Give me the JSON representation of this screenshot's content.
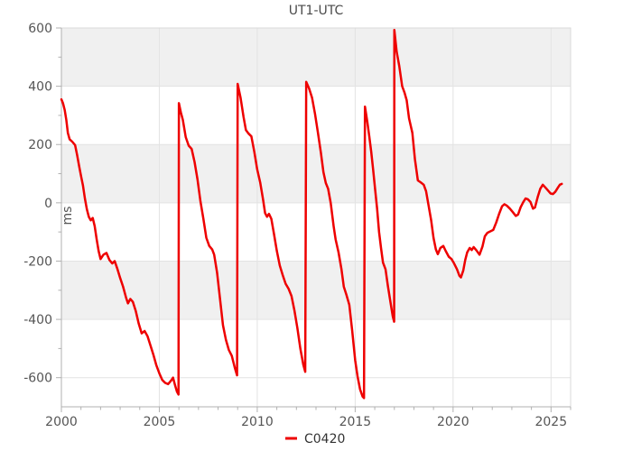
{
  "chart": {
    "title": "UT1-UTC",
    "y_axis_label": "ms",
    "legend": {
      "label": "C0420",
      "color": "#ee0000"
    }
  },
  "chart_data": {
    "type": "line",
    "title": "UT1-UTC",
    "xlabel": "",
    "ylabel": "ms",
    "xlim": [
      2000,
      2026
    ],
    "ylim": [
      -700,
      600
    ],
    "x_major_ticks": [
      2000,
      2005,
      2010,
      2015,
      2020,
      2025
    ],
    "x_minor_step": 1,
    "y_major_ticks": [
      600,
      400,
      200,
      0,
      -200,
      -400,
      -600
    ],
    "y_minor_step": 100,
    "grid": true,
    "shaded_bands": [
      [
        600,
        400
      ],
      [
        200,
        0
      ],
      [
        -200,
        -400
      ]
    ],
    "band_color": "#f0f0f0",
    "grid_color": "#e3e3e3",
    "axis_color": "#b0b0b0",
    "border_color": "#dadada",
    "text_color": "#555555",
    "legend_position": "bottom-center",
    "series": [
      {
        "name": "C0420",
        "color": "#ee0000",
        "width": 2.5,
        "points": [
          [
            2000.0,
            355
          ],
          [
            2000.08,
            342
          ],
          [
            2000.17,
            318
          ],
          [
            2000.25,
            285
          ],
          [
            2000.33,
            240
          ],
          [
            2000.42,
            218
          ],
          [
            2000.55,
            210
          ],
          [
            2000.7,
            198
          ],
          [
            2000.8,
            165
          ],
          [
            2000.9,
            128
          ],
          [
            2001.0,
            93
          ],
          [
            2001.1,
            60
          ],
          [
            2001.2,
            15
          ],
          [
            2001.3,
            -22
          ],
          [
            2001.4,
            -48
          ],
          [
            2001.5,
            -60
          ],
          [
            2001.6,
            -52
          ],
          [
            2001.7,
            -80
          ],
          [
            2001.8,
            -125
          ],
          [
            2001.9,
            -165
          ],
          [
            2002.0,
            -193
          ],
          [
            2002.15,
            -178
          ],
          [
            2002.3,
            -172
          ],
          [
            2002.45,
            -196
          ],
          [
            2002.6,
            -208
          ],
          [
            2002.72,
            -200
          ],
          [
            2002.85,
            -225
          ],
          [
            2003.0,
            -258
          ],
          [
            2003.15,
            -288
          ],
          [
            2003.3,
            -325
          ],
          [
            2003.4,
            -345
          ],
          [
            2003.52,
            -330
          ],
          [
            2003.65,
            -340
          ],
          [
            2003.8,
            -372
          ],
          [
            2003.95,
            -415
          ],
          [
            2004.1,
            -448
          ],
          [
            2004.25,
            -440
          ],
          [
            2004.4,
            -458
          ],
          [
            2004.55,
            -490
          ],
          [
            2004.7,
            -522
          ],
          [
            2004.85,
            -558
          ],
          [
            2005.0,
            -585
          ],
          [
            2005.15,
            -608
          ],
          [
            2005.3,
            -618
          ],
          [
            2005.45,
            -622
          ],
          [
            2005.6,
            -610
          ],
          [
            2005.7,
            -600
          ],
          [
            2005.8,
            -625
          ],
          [
            2005.9,
            -648
          ],
          [
            2005.98,
            -658
          ],
          [
            2006.0,
            342
          ],
          [
            2006.1,
            310
          ],
          [
            2006.2,
            285
          ],
          [
            2006.35,
            225
          ],
          [
            2006.5,
            196
          ],
          [
            2006.65,
            185
          ],
          [
            2006.8,
            140
          ],
          [
            2006.95,
            80
          ],
          [
            2007.1,
            5
          ],
          [
            2007.25,
            -55
          ],
          [
            2007.4,
            -120
          ],
          [
            2007.55,
            -148
          ],
          [
            2007.7,
            -160
          ],
          [
            2007.8,
            -178
          ],
          [
            2007.95,
            -240
          ],
          [
            2008.1,
            -330
          ],
          [
            2008.25,
            -420
          ],
          [
            2008.4,
            -470
          ],
          [
            2008.55,
            -505
          ],
          [
            2008.7,
            -525
          ],
          [
            2008.85,
            -565
          ],
          [
            2008.97,
            -592
          ],
          [
            2009.0,
            408
          ],
          [
            2009.15,
            360
          ],
          [
            2009.3,
            295
          ],
          [
            2009.42,
            250
          ],
          [
            2009.55,
            238
          ],
          [
            2009.7,
            228
          ],
          [
            2009.85,
            175
          ],
          [
            2010.0,
            114
          ],
          [
            2010.15,
            70
          ],
          [
            2010.3,
            10
          ],
          [
            2010.4,
            -35
          ],
          [
            2010.5,
            -48
          ],
          [
            2010.6,
            -38
          ],
          [
            2010.72,
            -55
          ],
          [
            2010.85,
            -105
          ],
          [
            2011.0,
            -165
          ],
          [
            2011.15,
            -215
          ],
          [
            2011.3,
            -248
          ],
          [
            2011.45,
            -278
          ],
          [
            2011.6,
            -295
          ],
          [
            2011.75,
            -320
          ],
          [
            2011.9,
            -370
          ],
          [
            2012.05,
            -430
          ],
          [
            2012.2,
            -500
          ],
          [
            2012.35,
            -555
          ],
          [
            2012.45,
            -580
          ],
          [
            2012.5,
            415
          ],
          [
            2012.65,
            392
          ],
          [
            2012.8,
            360
          ],
          [
            2012.95,
            305
          ],
          [
            2013.1,
            240
          ],
          [
            2013.25,
            172
          ],
          [
            2013.38,
            105
          ],
          [
            2013.5,
            68
          ],
          [
            2013.62,
            48
          ],
          [
            2013.75,
            0
          ],
          [
            2013.9,
            -80
          ],
          [
            2014.0,
            -125
          ],
          [
            2014.15,
            -170
          ],
          [
            2014.3,
            -228
          ],
          [
            2014.42,
            -288
          ],
          [
            2014.55,
            -315
          ],
          [
            2014.7,
            -350
          ],
          [
            2014.85,
            -440
          ],
          [
            2015.0,
            -540
          ],
          [
            2015.12,
            -595
          ],
          [
            2015.25,
            -640
          ],
          [
            2015.38,
            -665
          ],
          [
            2015.45,
            -670
          ],
          [
            2015.5,
            330
          ],
          [
            2015.62,
            278
          ],
          [
            2015.72,
            228
          ],
          [
            2015.82,
            175
          ],
          [
            2015.92,
            112
          ],
          [
            2016.02,
            45
          ],
          [
            2016.12,
            -20
          ],
          [
            2016.22,
            -100
          ],
          [
            2016.32,
            -155
          ],
          [
            2016.42,
            -205
          ],
          [
            2016.55,
            -228
          ],
          [
            2016.67,
            -285
          ],
          [
            2016.8,
            -340
          ],
          [
            2016.92,
            -390
          ],
          [
            2016.99,
            -408
          ],
          [
            2017.0,
            593
          ],
          [
            2017.12,
            518
          ],
          [
            2017.25,
            470
          ],
          [
            2017.4,
            400
          ],
          [
            2017.52,
            378
          ],
          [
            2017.63,
            352
          ],
          [
            2017.75,
            290
          ],
          [
            2017.92,
            240
          ],
          [
            2018.05,
            150
          ],
          [
            2018.2,
            77
          ],
          [
            2018.35,
            70
          ],
          [
            2018.5,
            62
          ],
          [
            2018.62,
            40
          ],
          [
            2018.75,
            -10
          ],
          [
            2018.88,
            -60
          ],
          [
            2019.0,
            -120
          ],
          [
            2019.12,
            -160
          ],
          [
            2019.22,
            -176
          ],
          [
            2019.35,
            -155
          ],
          [
            2019.5,
            -148
          ],
          [
            2019.62,
            -165
          ],
          [
            2019.78,
            -185
          ],
          [
            2019.92,
            -193
          ],
          [
            2020.05,
            -208
          ],
          [
            2020.2,
            -228
          ],
          [
            2020.32,
            -250
          ],
          [
            2020.4,
            -256
          ],
          [
            2020.52,
            -232
          ],
          [
            2020.62,
            -196
          ],
          [
            2020.72,
            -170
          ],
          [
            2020.85,
            -155
          ],
          [
            2020.95,
            -162
          ],
          [
            2021.05,
            -152
          ],
          [
            2021.2,
            -164
          ],
          [
            2021.35,
            -178
          ],
          [
            2021.5,
            -150
          ],
          [
            2021.62,
            -115
          ],
          [
            2021.75,
            -103
          ],
          [
            2021.9,
            -98
          ],
          [
            2022.05,
            -93
          ],
          [
            2022.2,
            -68
          ],
          [
            2022.35,
            -38
          ],
          [
            2022.5,
            -12
          ],
          [
            2022.62,
            -5
          ],
          [
            2022.75,
            -10
          ],
          [
            2022.9,
            -20
          ],
          [
            2023.05,
            -32
          ],
          [
            2023.2,
            -45
          ],
          [
            2023.32,
            -40
          ],
          [
            2023.45,
            -15
          ],
          [
            2023.58,
            2
          ],
          [
            2023.7,
            15
          ],
          [
            2023.82,
            12
          ],
          [
            2023.95,
            3
          ],
          [
            2024.08,
            -20
          ],
          [
            2024.18,
            -16
          ],
          [
            2024.32,
            20
          ],
          [
            2024.45,
            48
          ],
          [
            2024.58,
            62
          ],
          [
            2024.72,
            52
          ],
          [
            2024.85,
            42
          ],
          [
            2024.98,
            32
          ],
          [
            2025.1,
            30
          ],
          [
            2025.22,
            38
          ],
          [
            2025.35,
            52
          ],
          [
            2025.45,
            62
          ],
          [
            2025.55,
            65
          ]
        ]
      }
    ]
  }
}
